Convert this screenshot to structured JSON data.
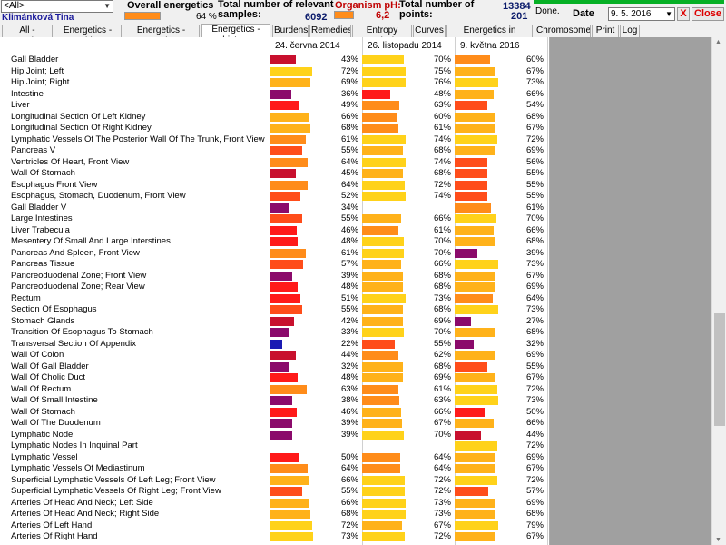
{
  "header": {
    "group_select": "<All>",
    "patient_name": "Klimánková Tina",
    "overall_label": "Overall energetics",
    "overall_pct": "64 %",
    "samples_label_1": "Total number of relevant",
    "samples_label_2": "samples:",
    "samples_value": "6092",
    "ph_label": "Organism pH:",
    "ph_value": "6,2",
    "points_label_1": "Total number of",
    "points_label_2": "points:",
    "points_top": "13384",
    "points_bottom": "201",
    "done_text": "Done.",
    "date_label": "Date",
    "date_value": "9. 5. 2016",
    "close_x": "X",
    "close_label": "Close"
  },
  "tabs": [
    "All - overview",
    "Energetics - table",
    "Energetics - overview",
    "Energetics - history",
    "Burdens",
    "Remedies",
    "Entropy analysis",
    "Curves",
    "Energetics in pentagram",
    "Chromosomes",
    "Print",
    "Log"
  ],
  "active_tab": 3,
  "columns": [
    "24. června 2014",
    "26. listopadu 2014",
    "9. května 2016"
  ],
  "colors": {
    "purple": "#8b0a6b",
    "darkred": "#c8102e",
    "red": "#ff1a1a",
    "redorange": "#ff4d1a",
    "orange": "#ff8c1a",
    "lightorange": "#ffb21a",
    "yellow": "#ffd21a",
    "blue": "#1a1ab3"
  },
  "rows": [
    {
      "name": "Gall Bladder",
      "v": [
        "43%",
        "70%",
        "60%"
      ],
      "f": [
        0.6,
        0.95,
        0.82
      ]
    },
    {
      "name": "Hip Joint; Left",
      "v": [
        "72%",
        "75%",
        "67%"
      ],
      "f": [
        0.98,
        1.0,
        0.92
      ]
    },
    {
      "name": "Hip Joint; Right",
      "v": [
        "69%",
        "76%",
        "73%"
      ],
      "f": [
        0.94,
        1.0,
        0.99
      ]
    },
    {
      "name": "Intestine",
      "v": [
        "36%",
        "48%",
        "66%"
      ],
      "f": [
        0.5,
        0.65,
        0.9
      ]
    },
    {
      "name": "Liver",
      "v": [
        "49%",
        "63%",
        "54%"
      ],
      "f": [
        0.67,
        0.86,
        0.74
      ]
    },
    {
      "name": "Longitudinal Section Of Left Kidney",
      "v": [
        "66%",
        "60%",
        "68%"
      ],
      "f": [
        0.9,
        0.82,
        0.93
      ]
    },
    {
      "name": "Longitudinal Section Of Right Kidney",
      "v": [
        "68%",
        "61%",
        "67%"
      ],
      "f": [
        0.93,
        0.83,
        0.92
      ]
    },
    {
      "name": "Lymphatic Vessels Of The Posterior Wall Of The Trunk, Front View",
      "v": [
        "61%",
        "74%",
        "72%"
      ],
      "f": [
        0.83,
        1.0,
        0.98
      ]
    },
    {
      "name": "Pancreas V",
      "v": [
        "55%",
        "68%",
        "69%"
      ],
      "f": [
        0.75,
        0.93,
        0.94
      ]
    },
    {
      "name": "Ventricles Of Heart, Front View",
      "v": [
        "64%",
        "74%",
        "56%"
      ],
      "f": [
        0.87,
        1.0,
        0.76
      ]
    },
    {
      "name": "Wall Of Stomach",
      "v": [
        "45%",
        "68%",
        "55%"
      ],
      "f": [
        0.61,
        0.93,
        0.75
      ]
    },
    {
      "name": "Esophagus Front View",
      "v": [
        "64%",
        "72%",
        "55%"
      ],
      "f": [
        0.87,
        0.98,
        0.75
      ]
    },
    {
      "name": "Esophagus, Stomach, Duodenum, Front View",
      "v": [
        "52%",
        "74%",
        "55%"
      ],
      "f": [
        0.71,
        1.0,
        0.75
      ]
    },
    {
      "name": "Gall Bladder V",
      "v": [
        "34%",
        "",
        "61%"
      ],
      "f": [
        0.46,
        0,
        0.83
      ]
    },
    {
      "name": "Large Intestines",
      "v": [
        "55%",
        "66%",
        "70%"
      ],
      "f": [
        0.75,
        0.9,
        0.95
      ]
    },
    {
      "name": "Liver Trabecula",
      "v": [
        "46%",
        "61%",
        "66%"
      ],
      "f": [
        0.63,
        0.83,
        0.9
      ]
    },
    {
      "name": "Mesentery Of Small And Large Interstines",
      "v": [
        "48%",
        "70%",
        "68%"
      ],
      "f": [
        0.65,
        0.95,
        0.93
      ]
    },
    {
      "name": "Pancreas And Spleen, Front View",
      "v": [
        "61%",
        "70%",
        "39%"
      ],
      "f": [
        0.83,
        0.95,
        0.53
      ]
    },
    {
      "name": "Pancreas Tissue",
      "v": [
        "57%",
        "66%",
        "73%"
      ],
      "f": [
        0.78,
        0.9,
        0.99
      ]
    },
    {
      "name": "Pancreoduodenal Zone; Front View",
      "v": [
        "39%",
        "68%",
        "67%"
      ],
      "f": [
        0.53,
        0.93,
        0.92
      ]
    },
    {
      "name": "Pancreoduodenal Zone; Rear View",
      "v": [
        "48%",
        "68%",
        "69%"
      ],
      "f": [
        0.65,
        0.93,
        0.94
      ]
    },
    {
      "name": "Rectum",
      "v": [
        "51%",
        "73%",
        "64%"
      ],
      "f": [
        0.7,
        0.99,
        0.87
      ]
    },
    {
      "name": "Section Of Esophagus",
      "v": [
        "55%",
        "68%",
        "73%"
      ],
      "f": [
        0.75,
        0.93,
        0.99
      ]
    },
    {
      "name": "Stomach Glands",
      "v": [
        "42%",
        "69%",
        "27%"
      ],
      "f": [
        0.57,
        0.94,
        0.37
      ]
    },
    {
      "name": "Transition Of Esophagus To Stomach",
      "v": [
        "33%",
        "70%",
        "68%"
      ],
      "f": [
        0.45,
        0.95,
        0.93
      ]
    },
    {
      "name": "Transversal Section Of Appendix",
      "v": [
        "22%",
        "55%",
        "32%"
      ],
      "f": [
        0.3,
        0.75,
        0.44
      ]
    },
    {
      "name": "Wall Of Colon",
      "v": [
        "44%",
        "62%",
        "69%"
      ],
      "f": [
        0.6,
        0.84,
        0.94
      ]
    },
    {
      "name": "Wall Of Gall Bladder",
      "v": [
        "32%",
        "68%",
        "55%"
      ],
      "f": [
        0.44,
        0.93,
        0.75
      ]
    },
    {
      "name": "Wall Of Cholic Duct",
      "v": [
        "48%",
        "69%",
        "67%"
      ],
      "f": [
        0.65,
        0.94,
        0.92
      ]
    },
    {
      "name": "Wall Of Rectum",
      "v": [
        "63%",
        "61%",
        "72%"
      ],
      "f": [
        0.86,
        0.83,
        0.98
      ]
    },
    {
      "name": "Wall Of Small Intestine",
      "v": [
        "38%",
        "63%",
        "73%"
      ],
      "f": [
        0.52,
        0.86,
        0.99
      ]
    },
    {
      "name": "Wall Of Stomach",
      "v": [
        "46%",
        "66%",
        "50%"
      ],
      "f": [
        0.63,
        0.9,
        0.68
      ]
    },
    {
      "name": "Wall Of The Duodenum",
      "v": [
        "39%",
        "67%",
        "66%"
      ],
      "f": [
        0.53,
        0.92,
        0.9
      ]
    },
    {
      "name": "Lymphatic Node",
      "v": [
        "39%",
        "70%",
        "44%"
      ],
      "f": [
        0.53,
        0.95,
        0.6
      ]
    },
    {
      "name": "Lymphatic Nodes In Inquinal Part",
      "v": [
        "",
        "",
        "72%"
      ],
      "f": [
        0,
        0,
        0.98
      ]
    },
    {
      "name": "Lymphatic Vessel",
      "v": [
        "50%",
        "64%",
        "69%"
      ],
      "f": [
        0.68,
        0.87,
        0.94
      ]
    },
    {
      "name": "Lymphatic Vessels Of Mediastinum",
      "v": [
        "64%",
        "64%",
        "67%"
      ],
      "f": [
        0.87,
        0.87,
        0.92
      ]
    },
    {
      "name": "Superficial Lymphatic Vessels Of Left Leg; Front View",
      "v": [
        "66%",
        "72%",
        "72%"
      ],
      "f": [
        0.9,
        0.98,
        0.98
      ]
    },
    {
      "name": "Superficial Lymphatic Vessels Of Right Leg; Front View",
      "v": [
        "55%",
        "72%",
        "57%"
      ],
      "f": [
        0.75,
        0.98,
        0.78
      ]
    },
    {
      "name": "Arteries Of Head And Neck; Left Side",
      "v": [
        "66%",
        "73%",
        "69%"
      ],
      "f": [
        0.9,
        0.99,
        0.94
      ]
    },
    {
      "name": "Arteries Of Head And Neck; Right Side",
      "v": [
        "68%",
        "73%",
        "68%"
      ],
      "f": [
        0.93,
        0.99,
        0.93
      ]
    },
    {
      "name": "Arteries Of Left Hand",
      "v": [
        "72%",
        "67%",
        "79%"
      ],
      "f": [
        0.98,
        0.92,
        1.0
      ]
    },
    {
      "name": "Arteries Of Right Hand",
      "v": [
        "73%",
        "72%",
        "67%"
      ],
      "f": [
        0.99,
        0.98,
        0.92
      ]
    }
  ]
}
